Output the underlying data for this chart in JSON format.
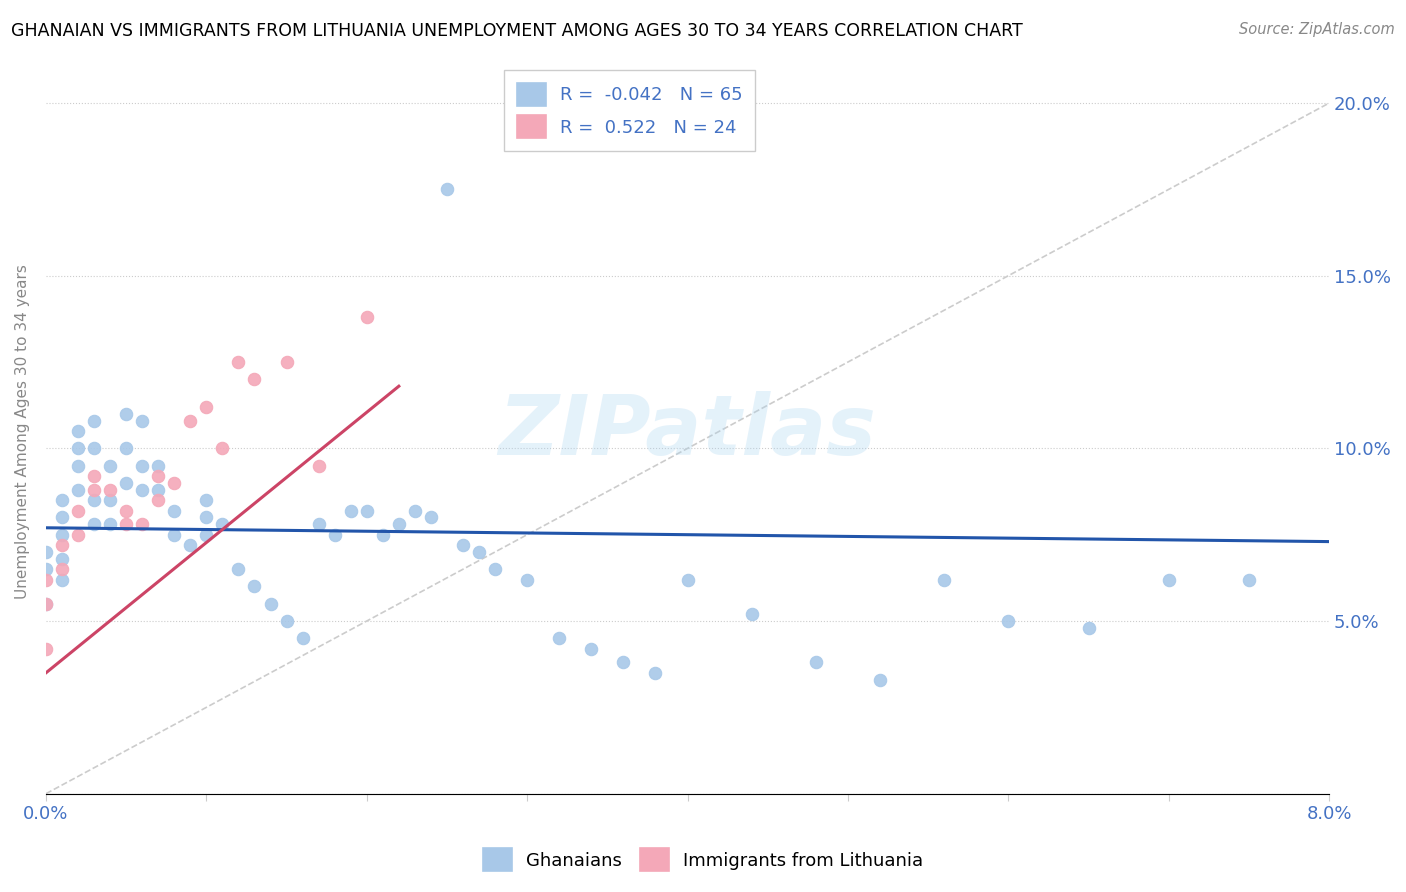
{
  "title": "GHANAIAN VS IMMIGRANTS FROM LITHUANIA UNEMPLOYMENT AMONG AGES 30 TO 34 YEARS CORRELATION CHART",
  "source": "Source: ZipAtlas.com",
  "ylabel_left": "Unemployment Among Ages 30 to 34 years",
  "xmin": 0.0,
  "xmax": 0.08,
  "ymin": 0.0,
  "ymax": 0.21,
  "ghanaian_R": -0.042,
  "ghanaian_N": 65,
  "lithuania_R": 0.522,
  "lithuania_N": 24,
  "ghanaian_color": "#a8c8e8",
  "lithuania_color": "#f4a8b8",
  "ghanaian_line_color": "#2255aa",
  "lithuania_line_color": "#cc4466",
  "ref_line_color": "#cccccc",
  "ghanaian_x": [
    0.0,
    0.0,
    0.0,
    0.001,
    0.001,
    0.001,
    0.001,
    0.001,
    0.002,
    0.002,
    0.002,
    0.002,
    0.003,
    0.003,
    0.003,
    0.003,
    0.004,
    0.004,
    0.004,
    0.005,
    0.005,
    0.005,
    0.006,
    0.006,
    0.006,
    0.007,
    0.007,
    0.008,
    0.008,
    0.009,
    0.01,
    0.01,
    0.01,
    0.011,
    0.012,
    0.013,
    0.014,
    0.015,
    0.016,
    0.017,
    0.018,
    0.019,
    0.02,
    0.021,
    0.022,
    0.023,
    0.024,
    0.025,
    0.026,
    0.027,
    0.028,
    0.03,
    0.032,
    0.034,
    0.036,
    0.038,
    0.04,
    0.044,
    0.048,
    0.052,
    0.056,
    0.06,
    0.065,
    0.07,
    0.075
  ],
  "ghanaian_y": [
    0.065,
    0.07,
    0.055,
    0.085,
    0.08,
    0.075,
    0.068,
    0.062,
    0.105,
    0.1,
    0.095,
    0.088,
    0.108,
    0.1,
    0.085,
    0.078,
    0.095,
    0.085,
    0.078,
    0.11,
    0.1,
    0.09,
    0.108,
    0.095,
    0.088,
    0.095,
    0.088,
    0.082,
    0.075,
    0.072,
    0.085,
    0.08,
    0.075,
    0.078,
    0.065,
    0.06,
    0.055,
    0.05,
    0.045,
    0.078,
    0.075,
    0.082,
    0.082,
    0.075,
    0.078,
    0.082,
    0.08,
    0.175,
    0.072,
    0.07,
    0.065,
    0.062,
    0.045,
    0.042,
    0.038,
    0.035,
    0.062,
    0.052,
    0.038,
    0.033,
    0.062,
    0.05,
    0.048,
    0.062,
    0.062
  ],
  "lithuania_x": [
    0.0,
    0.0,
    0.0,
    0.001,
    0.001,
    0.002,
    0.002,
    0.003,
    0.003,
    0.004,
    0.005,
    0.005,
    0.006,
    0.007,
    0.007,
    0.008,
    0.009,
    0.01,
    0.011,
    0.012,
    0.013,
    0.015,
    0.017,
    0.02
  ],
  "lithuania_y": [
    0.062,
    0.055,
    0.042,
    0.072,
    0.065,
    0.082,
    0.075,
    0.092,
    0.088,
    0.088,
    0.082,
    0.078,
    0.078,
    0.092,
    0.085,
    0.09,
    0.108,
    0.112,
    0.1,
    0.125,
    0.12,
    0.125,
    0.095,
    0.138
  ],
  "ghanaian_line_x": [
    0.0,
    0.08
  ],
  "ghanaian_line_y": [
    0.077,
    0.073
  ],
  "lithuania_line_x": [
    0.0,
    0.022
  ],
  "lithuania_line_y": [
    0.035,
    0.118
  ]
}
